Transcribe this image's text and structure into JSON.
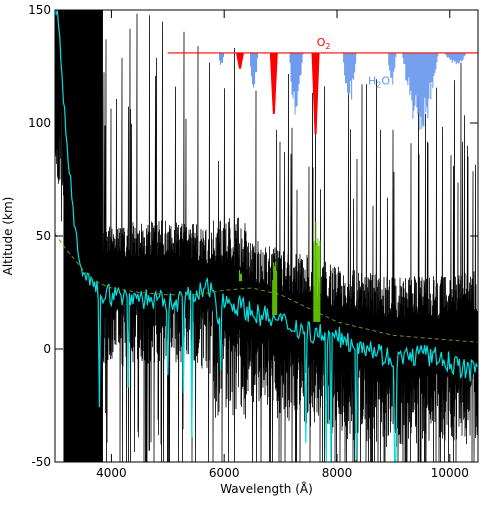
{
  "chart_data": {
    "type": "line",
    "xlabel": "Wavelength (Å)",
    "ylabel": "Altitude (km)",
    "xlim": [
      3000,
      10500
    ],
    "ylim": [
      -50,
      150
    ],
    "xticks": [
      4000,
      6000,
      8000,
      10000
    ],
    "yticks": [
      -50,
      0,
      50,
      100,
      150
    ],
    "grid": false,
    "series": [
      {
        "color": "#000000",
        "style": "noisy spectrum",
        "x": [
          3050,
          3150,
          3250,
          3350,
          3450,
          3550,
          3650,
          3800,
          4000,
          4500,
          5000,
          5500,
          5800,
          5900,
          6000,
          6200,
          6500,
          7000,
          7500,
          8000,
          8500,
          9000,
          9500,
          10000,
          10400
        ],
        "values": [
          150,
          120,
          95,
          70,
          50,
          38,
          32,
          28,
          33,
          34,
          35,
          33,
          30,
          24,
          30,
          28,
          22,
          18,
          15,
          10,
          8,
          5,
          8,
          5,
          8
        ]
      },
      {
        "color": "#00e0e0",
        "style": "smoothed spectrum",
        "x": [
          3050,
          3150,
          3250,
          3350,
          3450,
          3550,
          3650,
          3800,
          4000,
          4500,
          5000,
          5500,
          5800,
          5900,
          6000,
          6200,
          6500,
          7000,
          7500,
          8000,
          8500,
          9000,
          9500,
          10000,
          10400
        ],
        "values": [
          150,
          110,
          80,
          55,
          40,
          32,
          28,
          25,
          24,
          23,
          20,
          24,
          27,
          15,
          22,
          20,
          16,
          12,
          8,
          5,
          2,
          -5,
          -2,
          -6,
          -10
        ]
      },
      {
        "color": "#6b8e23",
        "style": "dashed model",
        "x": [
          3000,
          3200,
          3400,
          3600,
          3800,
          4000,
          4500,
          5000,
          5500,
          6000,
          6500,
          7000,
          7500,
          8000,
          8500,
          9000,
          9500,
          10000,
          10500
        ],
        "values": [
          51,
          44,
          38,
          32,
          29,
          27,
          25,
          24,
          24,
          26,
          27,
          24,
          18,
          12,
          9,
          6,
          5,
          4,
          3
        ]
      },
      {
        "color": "#66cc00",
        "style": "O2 bands",
        "segments": [
          {
            "x": [
              6270,
              6320
            ],
            "range": [
              30,
              35
            ]
          },
          {
            "x": [
              6860,
              6940
            ],
            "range": [
              15,
              40
            ]
          },
          {
            "x": [
              7590,
              7700
            ],
            "range": [
              12,
              58
            ]
          }
        ]
      }
    ],
    "inset": {
      "type": "absorption spectrum",
      "baseline_altitude": 131,
      "x": [
        5000,
        10500
      ],
      "labels": [
        {
          "text": "O",
          "sub": "2",
          "color": "#ff0000",
          "x": 7640,
          "y": 134
        },
        {
          "text": "H",
          "sub": "2",
          "tail": "O",
          "color": "#6495ed",
          "x": 8550,
          "y": 117
        }
      ],
      "o2_bands": [
        {
          "x": 6280,
          "depth": 124
        },
        {
          "x": 6880,
          "depth": 104
        },
        {
          "x": 7620,
          "depth": 95
        }
      ],
      "h2o_bands": [
        {
          "x": [
            5900,
            6000
          ],
          "depth": 123
        },
        {
          "x": [
            6450,
            6600
          ],
          "depth": 110
        },
        {
          "x": [
            7150,
            7400
          ],
          "depth": 101
        },
        {
          "x": [
            8100,
            8350
          ],
          "depth": 107
        },
        {
          "x": [
            8900,
            9050
          ],
          "depth": 114
        },
        {
          "x": [
            9150,
            9800
          ],
          "depth": 94
        },
        {
          "x": [
            9900,
            10300
          ],
          "depth": 125
        }
      ]
    }
  }
}
